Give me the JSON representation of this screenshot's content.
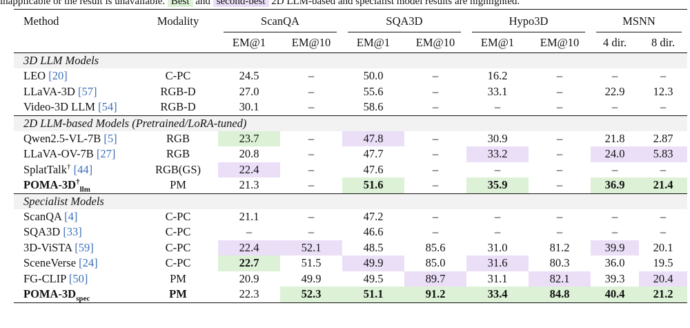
{
  "caption": {
    "prefix": "inapplicable or the result is unavailable.",
    "best_label": "Best",
    "and": "and",
    "second_label": "second-best",
    "suffix": "2D LLM-based and specialist model results are highlighted."
  },
  "header": {
    "method": "Method",
    "modality": "Modality",
    "groups": [
      "ScanQA",
      "SQA3D",
      "Hypo3D",
      "MSNN"
    ],
    "subcols": [
      "EM@1",
      "EM@10",
      "EM@1",
      "EM@10",
      "EM@1",
      "EM@10",
      "4 dir.",
      "8 dir."
    ]
  },
  "sections": [
    {
      "title": "3D LLM Models",
      "rows": [
        {
          "name": "LEO",
          "ref": "[20]",
          "modality": "C-PC",
          "values": [
            "24.5",
            "–",
            "50.0",
            "–",
            "16.2",
            "–",
            "–",
            "–"
          ]
        },
        {
          "name": "LLaVA-3D",
          "ref": "[57]",
          "modality": "RGB-D",
          "values": [
            "27.0",
            "–",
            "55.6",
            "–",
            "33.1",
            "–",
            "22.9",
            "12.3"
          ]
        },
        {
          "name": "Video-3D LLM",
          "ref": "[54]",
          "modality": "RGB-D",
          "values": [
            "30.1",
            "–",
            "58.6",
            "–",
            "–",
            "–",
            "–",
            "–"
          ]
        }
      ]
    },
    {
      "title": "2D LLM-based Models (Pretrained/LoRA-tuned)",
      "rows": [
        {
          "name": "Qwen2.5-VL-7B",
          "ref": "[5]",
          "modality": "RGB",
          "values": [
            "23.7",
            "–",
            "47.8",
            "–",
            "30.9",
            "–",
            "21.8",
            "2.87"
          ]
        },
        {
          "name": "LLaVA-OV-7B",
          "ref": "[27]",
          "modality": "RGB",
          "values": [
            "20.8",
            "–",
            "47.7",
            "–",
            "33.2",
            "–",
            "24.0",
            "5.83"
          ]
        },
        {
          "name": "SplatTalk",
          "ref": "[44]",
          "dagger": "†",
          "modality": "RGB(GS)",
          "values": [
            "22.4",
            "–",
            "47.6",
            "–",
            "–",
            "–",
            "–",
            "–"
          ]
        },
        {
          "name": "POMA-3D",
          "sup": "†",
          "sub": "llm",
          "modality": "PM",
          "values": [
            "21.3",
            "–",
            "51.6",
            "–",
            "35.9",
            "–",
            "36.9",
            "21.4"
          ]
        }
      ]
    },
    {
      "title": "Specialist Models",
      "rows": [
        {
          "name": "ScanQA",
          "ref": "[4]",
          "modality": "C-PC",
          "values": [
            "21.1",
            "–",
            "47.2",
            "–",
            "–",
            "–",
            "–",
            "–"
          ]
        },
        {
          "name": "SQA3D",
          "ref": "[33]",
          "modality": "C-PC",
          "values": [
            "–",
            "–",
            "46.6",
            "–",
            "–",
            "–",
            "–",
            "–"
          ]
        },
        {
          "name": "3D-ViSTA",
          "ref": "[59]",
          "modality": "C-PC",
          "values": [
            "22.4",
            "52.1",
            "48.5",
            "85.6",
            "31.0",
            "81.2",
            "39.9",
            "20.1"
          ]
        },
        {
          "name": "SceneVerse",
          "ref": "[24]",
          "modality": "C-PC",
          "values": [
            "22.7",
            "51.5",
            "49.9",
            "85.0",
            "31.6",
            "80.3",
            "36.0",
            "19.5"
          ]
        },
        {
          "name": "FG-CLIP",
          "ref": "[50]",
          "modality": "PM",
          "values": [
            "20.9",
            "49.9",
            "49.5",
            "89.7",
            "31.1",
            "82.1",
            "39.3",
            "20.4"
          ]
        },
        {
          "name": "POMA-3D",
          "sub": "spec",
          "modality": "PM",
          "values": [
            "22.3",
            "52.3",
            "51.1",
            "91.2",
            "33.4",
            "84.8",
            "40.4",
            "21.2"
          ]
        }
      ]
    }
  ]
}
